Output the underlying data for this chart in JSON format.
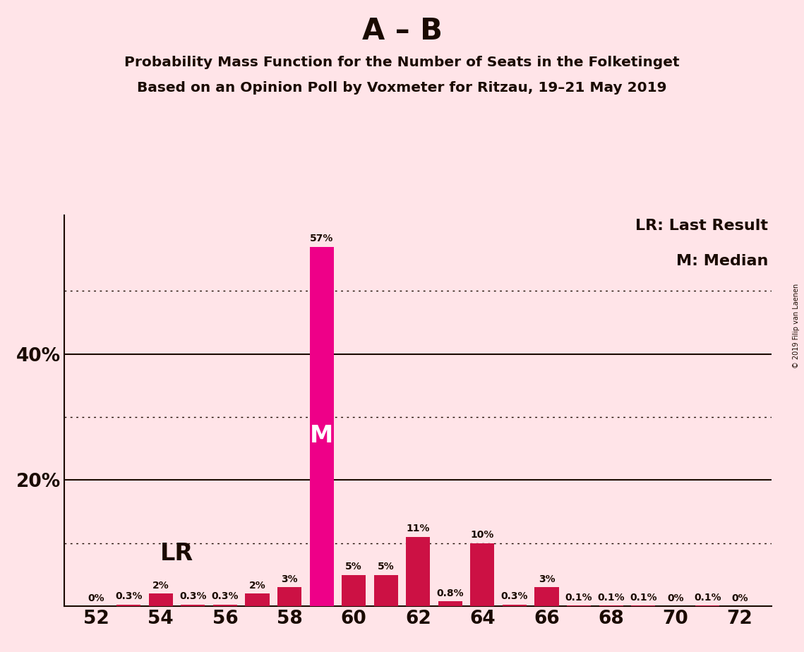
{
  "title_main": "A – B",
  "title_sub1": "Probability Mass Function for the Number of Seats in the Folketinget",
  "title_sub2": "Based on an Opinion Poll by Voxmeter for Ritzau, 19–21 May 2019",
  "copyright": "© 2019 Filip van Laenen",
  "seats": [
    52,
    53,
    54,
    55,
    56,
    57,
    58,
    59,
    60,
    61,
    62,
    63,
    64,
    65,
    66,
    67,
    68,
    69,
    70,
    71,
    72
  ],
  "values": [
    0.0,
    0.3,
    2.0,
    0.3,
    0.3,
    2.0,
    3.0,
    57.0,
    5.0,
    5.0,
    11.0,
    0.8,
    10.0,
    0.3,
    3.0,
    0.1,
    0.1,
    0.1,
    0.0,
    0.1,
    0.0
  ],
  "labels": [
    "0%",
    "0.3%",
    "2%",
    "0.3%",
    "0.3%",
    "2%",
    "3%",
    "57%",
    "5%",
    "5%",
    "11%",
    "0.8%",
    "10%",
    "0.3%",
    "3%",
    "0.1%",
    "0.1%",
    "0.1%",
    "0%",
    "0.1%",
    "0%"
  ],
  "median_seat": 59,
  "lr_seat": 55,
  "bar_color_normal": "#CC1144",
  "bar_color_median": "#EE0088",
  "background_color": "#FFE4E8",
  "text_color": "#1A0A00",
  "solid_gridlines": [
    20,
    40
  ],
  "dotted_gridlines": [
    10,
    30,
    50
  ],
  "xlim": [
    51,
    73
  ],
  "ylim": [
    0,
    62
  ],
  "xlabel_ticks": [
    52,
    54,
    56,
    58,
    60,
    62,
    64,
    66,
    68,
    70,
    72
  ],
  "legend_text1": "LR: Last Result",
  "legend_text2": "M: Median",
  "lr_label": "LR",
  "m_label": "M"
}
